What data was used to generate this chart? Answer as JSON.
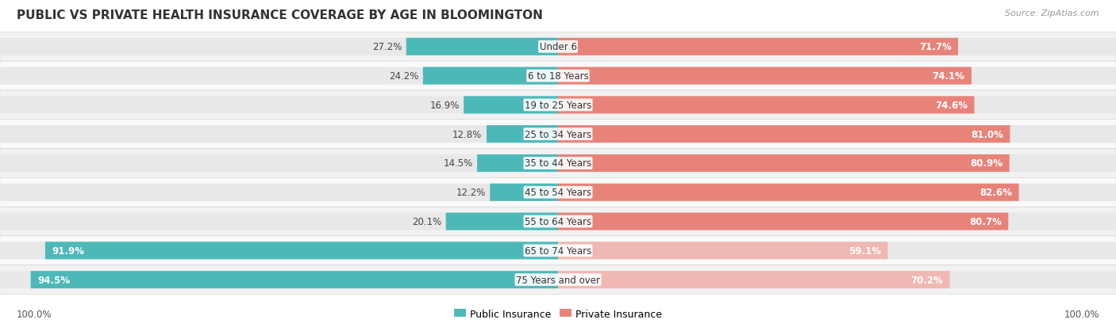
{
  "title": "PUBLIC VS PRIVATE HEALTH INSURANCE COVERAGE BY AGE IN BLOOMINGTON",
  "source": "Source: ZipAtlas.com",
  "categories": [
    "Under 6",
    "6 to 18 Years",
    "19 to 25 Years",
    "25 to 34 Years",
    "35 to 44 Years",
    "45 to 54 Years",
    "55 to 64 Years",
    "65 to 74 Years",
    "75 Years and over"
  ],
  "public_values": [
    27.2,
    24.2,
    16.9,
    12.8,
    14.5,
    12.2,
    20.1,
    91.9,
    94.5
  ],
  "private_values": [
    71.7,
    74.1,
    74.6,
    81.0,
    80.9,
    82.6,
    80.7,
    59.1,
    70.2
  ],
  "public_color": "#4db8b8",
  "private_color": "#e8837a",
  "private_color_light": "#f0b8b2",
  "public_color_light": "#4db8b8",
  "row_bg_even": "#f2f2f2",
  "row_bg_odd": "#fafafa",
  "bar_bg_color": "#e8e8e8",
  "title_fontsize": 11,
  "source_fontsize": 8,
  "label_fontsize": 8.5,
  "category_fontsize": 8.5,
  "legend_fontsize": 9,
  "footer_label": "100.0%",
  "figsize": [
    14.06,
    4.14
  ],
  "dpi": 100
}
